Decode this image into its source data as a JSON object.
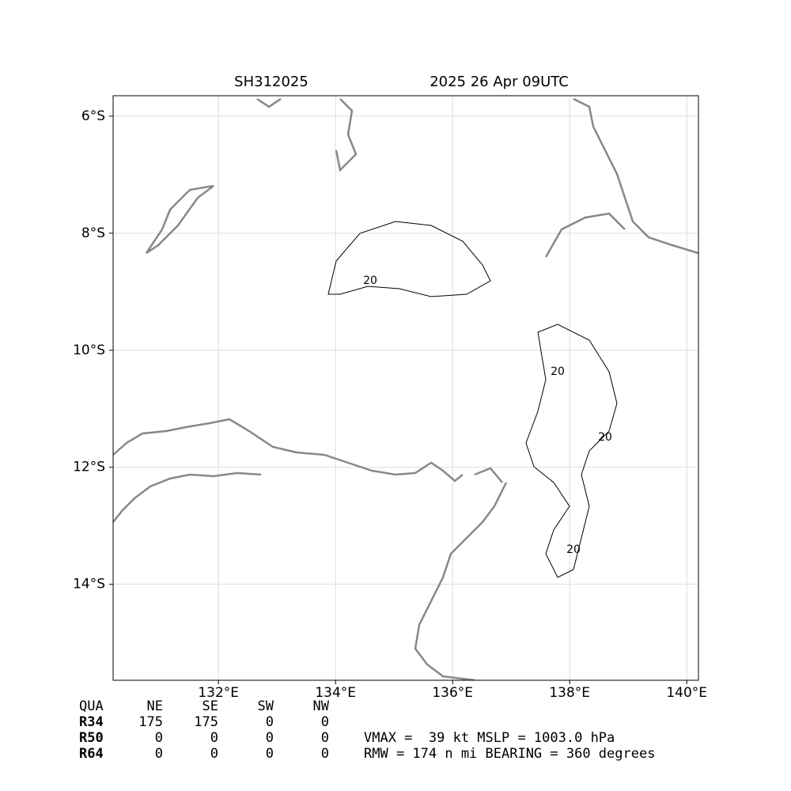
{
  "map": {
    "title_left": "SH312025",
    "title_right": "2025 26 Apr 09UTC",
    "xlim": [
      130.2,
      140.2
    ],
    "ylim": [
      -15.64,
      -5.65
    ],
    "xticks": [
      {
        "value": 132,
        "label": "132°E"
      },
      {
        "value": 134,
        "label": "134°E"
      },
      {
        "value": 136,
        "label": "136°E"
      },
      {
        "value": 138,
        "label": "138°E"
      },
      {
        "value": 140,
        "label": "140°E"
      }
    ],
    "yticks": [
      {
        "value": -6,
        "label": "6°S"
      },
      {
        "value": -8,
        "label": "8°S"
      },
      {
        "value": -10,
        "label": "10°S"
      },
      {
        "value": -12,
        "label": "12°S"
      },
      {
        "value": -14,
        "label": "14°S"
      }
    ],
    "contour_labels": [
      20,
      20,
      20,
      20
    ]
  },
  "table": {
    "header": [
      "QUA",
      "NE",
      "SE",
      "SW",
      "NW"
    ],
    "rows": [
      [
        "R34",
        "175",
        "175",
        "0",
        "0"
      ],
      [
        "R50",
        "0",
        "0",
        "0",
        "0"
      ],
      [
        "R64",
        "0",
        "0",
        "0",
        "0"
      ]
    ]
  },
  "info": [
    "VMAX =  39 kt MSLP = 1003.0 hPa",
    "RMW = 174 n mi BEARING = 360 degrees"
  ]
}
